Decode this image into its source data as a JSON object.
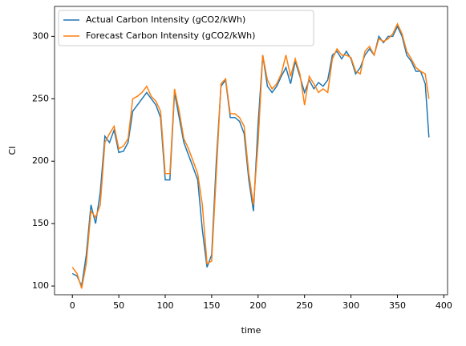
{
  "chart_data": {
    "type": "line",
    "xlabel": "time",
    "ylabel": "CI",
    "x": [
      0,
      5,
      10,
      15,
      20,
      25,
      30,
      35,
      40,
      45,
      50,
      55,
      60,
      65,
      70,
      75,
      80,
      85,
      90,
      95,
      100,
      105,
      110,
      115,
      120,
      125,
      130,
      135,
      140,
      145,
      150,
      155,
      160,
      165,
      170,
      175,
      180,
      185,
      190,
      195,
      200,
      205,
      210,
      215,
      220,
      225,
      230,
      235,
      240,
      245,
      250,
      255,
      260,
      265,
      270,
      275,
      280,
      285,
      290,
      295,
      300,
      305,
      310,
      315,
      320,
      325,
      330,
      335,
      340,
      345,
      350,
      355,
      360,
      365,
      370,
      375,
      380,
      384
    ],
    "series": [
      {
        "name": "Actual Carbon Intensity (gCO2/kWh)",
        "color": "#1f77b4",
        "values": [
          110,
          108,
          100,
          125,
          165,
          150,
          175,
          220,
          215,
          225,
          207,
          208,
          215,
          240,
          245,
          250,
          255,
          250,
          245,
          235,
          185,
          185,
          255,
          235,
          215,
          205,
          195,
          185,
          145,
          115,
          125,
          200,
          260,
          265,
          235,
          235,
          232,
          222,
          185,
          160,
          230,
          285,
          260,
          255,
          260,
          268,
          275,
          262,
          280,
          268,
          255,
          265,
          258,
          263,
          260,
          265,
          285,
          288,
          282,
          288,
          282,
          270,
          275,
          285,
          290,
          285,
          300,
          295,
          300,
          300,
          308,
          300,
          285,
          280,
          272,
          272,
          262,
          219
        ]
      },
      {
        "name": "Forecast Carbon Intensity (gCO2/kWh)",
        "color": "#ff7f0e",
        "values": [
          115,
          110,
          98,
          118,
          160,
          155,
          165,
          215,
          222,
          228,
          210,
          212,
          218,
          250,
          252,
          255,
          260,
          252,
          248,
          240,
          190,
          190,
          258,
          240,
          218,
          210,
          200,
          190,
          165,
          118,
          120,
          190,
          262,
          266,
          238,
          238,
          235,
          228,
          190,
          165,
          215,
          285,
          265,
          258,
          262,
          270,
          285,
          268,
          282,
          270,
          245,
          268,
          262,
          255,
          258,
          255,
          282,
          290,
          285,
          285,
          283,
          272,
          270,
          288,
          292,
          285,
          298,
          296,
          298,
          302,
          310,
          302,
          288,
          282,
          275,
          272,
          270,
          250
        ]
      }
    ],
    "xlim": [
      -19.2,
      404
    ],
    "xticks": [
      0,
      50,
      100,
      150,
      200,
      250,
      300,
      350,
      400
    ],
    "ylim": [
      93,
      324
    ],
    "yticks": [
      100,
      150,
      200,
      250,
      300
    ],
    "legend": "upper left"
  }
}
